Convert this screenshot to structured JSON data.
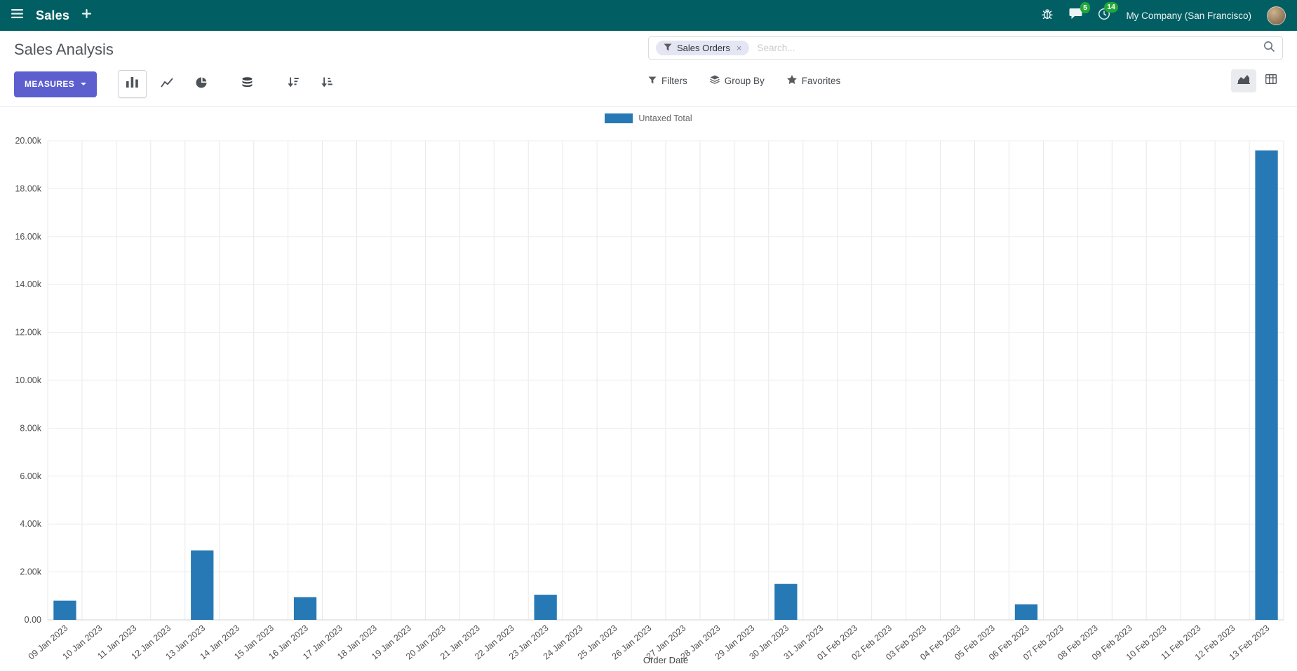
{
  "colors": {
    "navbar_bg": "#015f64",
    "accent": "#5d5fce",
    "bar": "#2779b5",
    "badge": "#23a73a"
  },
  "navbar": {
    "app_name": "Sales",
    "company": "My Company (San Francisco)",
    "messages_badge": "5",
    "activities_badge": "14"
  },
  "control_panel": {
    "title": "Sales Analysis",
    "measures_label": "MEASURES",
    "search": {
      "facet_label": "Sales Orders",
      "remove": "×",
      "placeholder": "Search..."
    },
    "filters_label": "Filters",
    "group_by_label": "Group By",
    "favorites_label": "Favorites"
  },
  "icons": {
    "menu": "hamburger",
    "new": "plus",
    "debug": "bug",
    "messages": "chat-bubble",
    "activities": "clock",
    "search": "magnifier",
    "filter": "funnel",
    "group_by": "layers",
    "favorites": "star",
    "chart_types": [
      "bar",
      "line",
      "pie"
    ],
    "stacked_toggle": "database",
    "sort": [
      "sort-desc",
      "sort-asc"
    ],
    "view_switcher": [
      "area-chart",
      "pivot-grid"
    ]
  },
  "chart_data": {
    "type": "bar",
    "title": "",
    "xlabel": "Order Date",
    "ylabel": "",
    "ylim": [
      0,
      20000
    ],
    "grid": true,
    "legend_position": "top",
    "legend": [
      {
        "label": "Untaxed Total",
        "color": "#2779b5"
      }
    ],
    "yticks": [
      0,
      2000,
      4000,
      6000,
      8000,
      10000,
      12000,
      14000,
      16000,
      18000,
      20000
    ],
    "ytick_labels": [
      "0.00",
      "2.00k",
      "4.00k",
      "6.00k",
      "8.00k",
      "10.00k",
      "12.00k",
      "14.00k",
      "16.00k",
      "18.00k",
      "20.00k"
    ],
    "categories": [
      "09 Jan 2023",
      "10 Jan 2023",
      "11 Jan 2023",
      "12 Jan 2023",
      "13 Jan 2023",
      "14 Jan 2023",
      "15 Jan 2023",
      "16 Jan 2023",
      "17 Jan 2023",
      "18 Jan 2023",
      "19 Jan 2023",
      "20 Jan 2023",
      "21 Jan 2023",
      "22 Jan 2023",
      "23 Jan 2023",
      "24 Jan 2023",
      "25 Jan 2023",
      "26 Jan 2023",
      "27 Jan 2023",
      "28 Jan 2023",
      "29 Jan 2023",
      "30 Jan 2023",
      "31 Jan 2023",
      "01 Feb 2023",
      "02 Feb 2023",
      "03 Feb 2023",
      "04 Feb 2023",
      "05 Feb 2023",
      "06 Feb 2023",
      "07 Feb 2023",
      "08 Feb 2023",
      "09 Feb 2023",
      "10 Feb 2023",
      "11 Feb 2023",
      "12 Feb 2023",
      "13 Feb 2023"
    ],
    "values": [
      800,
      0,
      0,
      0,
      2900,
      0,
      0,
      950,
      0,
      0,
      0,
      0,
      0,
      0,
      1050,
      0,
      0,
      0,
      0,
      0,
      0,
      1500,
      0,
      0,
      0,
      0,
      0,
      0,
      650,
      0,
      0,
      0,
      0,
      0,
      0,
      19600
    ]
  }
}
